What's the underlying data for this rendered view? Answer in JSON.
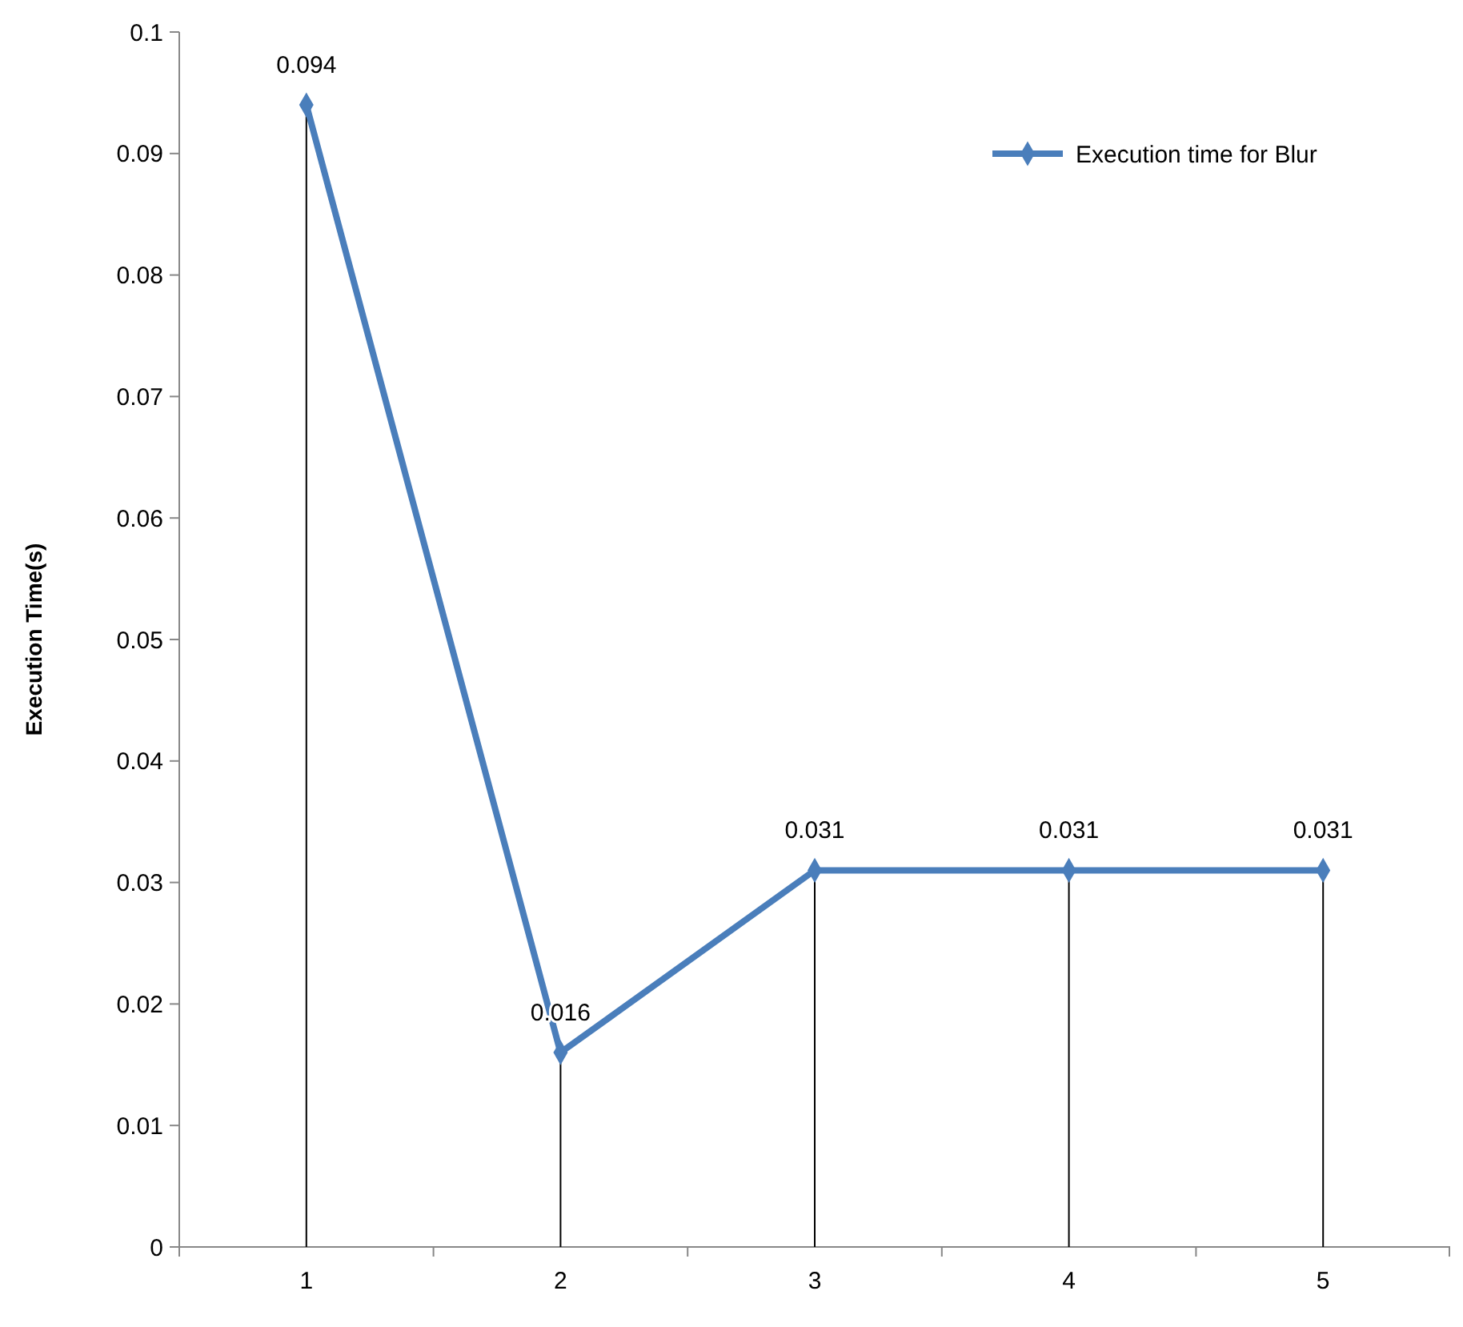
{
  "chart_data": {
    "type": "line",
    "ylabel": "Execution Time(s)",
    "categories": [
      "1",
      "2",
      "3",
      "4",
      "5"
    ],
    "series": [
      {
        "name": "Execution time for Blur",
        "color": "#4a7ebb",
        "values": [
          0.094,
          0.016,
          0.031,
          0.031,
          0.031
        ]
      }
    ],
    "ylim": [
      0,
      0.1
    ],
    "yticks": [
      0,
      0.01,
      0.02,
      0.03,
      0.04,
      0.05,
      0.06,
      0.07,
      0.08,
      0.09,
      0.1
    ],
    "legend": "top right",
    "marker": "diamond",
    "line_style": "solid",
    "data_labels": true
  }
}
